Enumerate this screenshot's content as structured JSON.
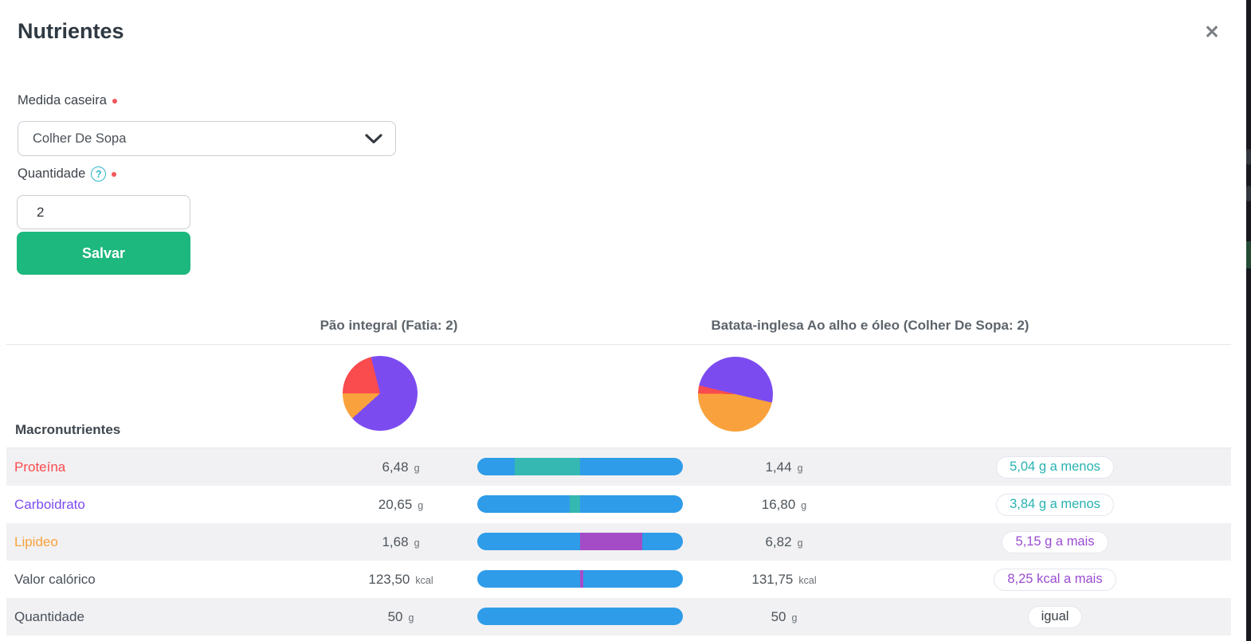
{
  "modal": {
    "title": "Nutrientes",
    "close_icon": "✕"
  },
  "form": {
    "measure_label": "Medida caseira",
    "measure_value": "Colher De Sopa",
    "quantity_label": "Quantidade",
    "help_glyph": "?",
    "quantity_value": "2",
    "save_label": "Salvar"
  },
  "colors": {
    "red": "#fa4b4e",
    "purple": "#7c4bf0",
    "orange": "#f9a13c",
    "default": "#49505a",
    "bar_blue": "#2e9ce9",
    "bar_teal": "#35b8b2",
    "bar_purple": "#a44cc6",
    "button_green": "#1db87e",
    "row_alt_bg": "#f1f1f3"
  },
  "comparison": {
    "col1_title": "Pão integral (Fatia: 2)",
    "col2_title": "Batata-inglesa Ao alho e óleo (Colher De Sopa: 2)",
    "section_label": "Macronutrientes",
    "rows": [
      {
        "label": "Proteína",
        "color_key": "red",
        "value1": "6,48",
        "unit1": "g",
        "value2": "1,44",
        "unit2": "g",
        "badge": "5,04 g a menos",
        "badge_type": "less",
        "segment": {
          "color_key": "bar_teal",
          "from_pct": 18.2,
          "to_pct": 50
        }
      },
      {
        "label": "Carboidrato",
        "color_key": "purple",
        "value1": "20,65",
        "unit1": "g",
        "value2": "16,80",
        "unit2": "g",
        "badge": "3,84 g a menos",
        "badge_type": "less",
        "segment": {
          "color_key": "bar_teal",
          "from_pct": 44.9,
          "to_pct": 50
        }
      },
      {
        "label": "Lipideo",
        "color_key": "orange",
        "value1": "1,68",
        "unit1": "g",
        "value2": "6,82",
        "unit2": "g",
        "badge": "5,15 g a mais",
        "badge_type": "more",
        "segment": {
          "color_key": "bar_purple",
          "from_pct": 50,
          "to_pct": 80.3
        }
      },
      {
        "label": "Valor calórico",
        "color_key": "default",
        "value1": "123,50",
        "unit1": "kcal",
        "value2": "131,75",
        "unit2": "kcal",
        "badge": "8,25 kcal a mais",
        "badge_type": "more",
        "segment": {
          "color_key": "bar_purple",
          "from_pct": 50,
          "to_pct": 51.6
        }
      },
      {
        "label": "Quantidade",
        "color_key": "default",
        "value1": "50",
        "unit1": "g",
        "value2": "50",
        "unit2": "g",
        "badge": "igual",
        "badge_type": "equal",
        "segment": null
      }
    ]
  },
  "chart_data": [
    {
      "type": "pie",
      "title": "Pão integral (Fatia: 2)",
      "categories": [
        "Carboidrato",
        "Lipideo",
        "Proteína"
      ],
      "values_pct": [
        67.2,
        11.7,
        21.1
      ],
      "start_deg": 346,
      "slice_deg": [
        242,
        42,
        76
      ],
      "colors": [
        "#7c4bf0",
        "#f9a13c",
        "#fa4b4e"
      ]
    },
    {
      "type": "pie",
      "title": "Batata-inglesa Ao alho e óleo (Colher De Sopa: 2)",
      "categories": [
        "Carboidrato",
        "Lipideo",
        "Proteína"
      ],
      "values_pct": [
        49.9,
        46.7,
        3.4
      ],
      "start_deg": 283.5,
      "slice_deg": [
        179.5,
        168,
        12.5
      ],
      "colors": [
        "#7c4bf0",
        "#f9a13c",
        "#fa4b4e"
      ]
    }
  ]
}
